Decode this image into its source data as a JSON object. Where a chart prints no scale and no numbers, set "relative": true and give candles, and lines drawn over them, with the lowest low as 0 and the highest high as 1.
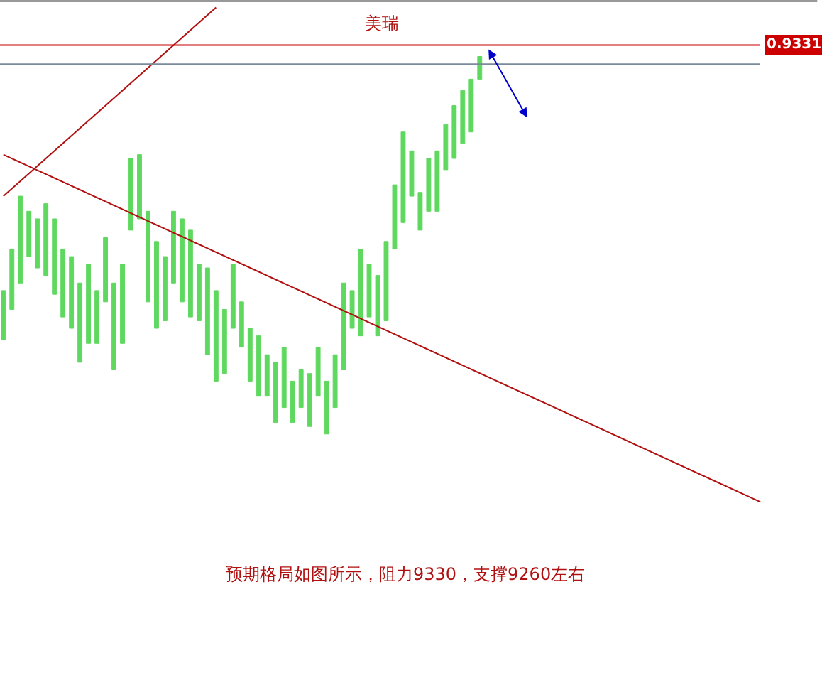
{
  "chart_data": {
    "type": "candlestick",
    "title": "美瑞",
    "relative": true,
    "tick_labels": false,
    "categories": [
      null,
      null,
      null,
      null,
      null,
      null,
      null,
      null,
      null,
      null,
      null,
      null,
      null,
      null,
      null,
      null,
      null,
      null,
      null,
      null,
      null,
      null,
      null,
      null,
      null,
      null,
      null,
      null,
      null,
      null,
      null,
      null,
      null,
      null,
      null,
      null,
      null,
      null,
      null,
      null,
      null,
      null,
      null,
      null,
      null,
      null,
      null,
      null,
      null,
      null,
      null,
      null,
      null,
      null,
      null,
      null,
      null,
      null,
      null,
      null,
      null,
      null,
      null,
      null,
      null,
      null,
      null,
      null,
      null,
      null,
      null,
      null,
      null,
      null,
      null,
      null,
      null,
      null,
      null,
      null,
      null,
      null,
      null,
      null,
      null,
      null,
      null,
      null,
      null,
      null
    ],
    "color": "#5fd85f",
    "ohlc": [
      [
        0.25,
        0.38,
        0.25,
        0.38
      ],
      [
        0.33,
        0.49,
        0.33,
        0.49
      ],
      [
        0.4,
        0.63,
        0.4,
        0.63
      ],
      [
        0.47,
        0.59,
        0.47,
        0.59
      ],
      [
        0.44,
        0.57,
        0.44,
        0.57
      ],
      [
        0.42,
        0.61,
        0.42,
        0.61
      ],
      [
        0.37,
        0.57,
        0.37,
        0.57
      ],
      [
        0.31,
        0.49,
        0.31,
        0.49
      ],
      [
        0.28,
        0.47,
        0.28,
        0.47
      ],
      [
        0.19,
        0.4,
        0.19,
        0.4
      ],
      [
        0.24,
        0.45,
        0.24,
        0.45
      ],
      [
        0.24,
        0.38,
        0.24,
        0.38
      ],
      [
        0.35,
        0.52,
        0.35,
        0.52
      ],
      [
        0.17,
        0.4,
        0.17,
        0.4
      ],
      [
        0.24,
        0.45,
        0.24,
        0.45
      ],
      [
        0.54,
        0.73,
        0.54,
        0.73
      ],
      [
        0.57,
        0.74,
        0.57,
        0.74
      ],
      [
        0.35,
        0.59,
        0.35,
        0.59
      ],
      [
        0.28,
        0.51,
        0.28,
        0.51
      ],
      [
        0.3,
        0.47,
        0.3,
        0.47
      ],
      [
        0.4,
        0.59,
        0.4,
        0.59
      ],
      [
        0.35,
        0.57,
        0.35,
        0.57
      ],
      [
        0.31,
        0.54,
        0.31,
        0.54
      ],
      [
        0.3,
        0.45,
        0.3,
        0.45
      ],
      [
        0.21,
        0.44,
        0.21,
        0.44
      ],
      [
        0.14,
        0.38,
        0.14,
        0.38
      ],
      [
        0.16,
        0.33,
        0.16,
        0.33
      ],
      [
        0.28,
        0.45,
        0.28,
        0.45
      ],
      [
        0.23,
        0.35,
        0.23,
        0.35
      ],
      [
        0.14,
        0.28,
        0.14,
        0.28
      ],
      [
        0.1,
        0.26,
        0.1,
        0.26
      ],
      [
        0.1,
        0.21,
        0.1,
        0.21
      ],
      [
        0.03,
        0.19,
        0.03,
        0.19
      ],
      [
        0.07,
        0.23,
        0.07,
        0.23
      ],
      [
        0.03,
        0.14,
        0.03,
        0.14
      ],
      [
        0.07,
        0.17,
        0.07,
        0.17
      ],
      [
        0.02,
        0.16,
        0.02,
        0.16
      ],
      [
        0.1,
        0.23,
        0.1,
        0.23
      ],
      [
        0,
        0.14,
        0,
        0.14
      ],
      [
        0.07,
        0.21,
        0.07,
        0.21
      ],
      [
        0.17,
        0.4,
        0.17,
        0.4
      ],
      [
        0.28,
        0.38,
        0.28,
        0.38
      ],
      [
        0.26,
        0.49,
        0.26,
        0.49
      ],
      [
        0.31,
        0.45,
        0.31,
        0.45
      ],
      [
        0.26,
        0.42,
        0.26,
        0.42
      ],
      [
        0.3,
        0.51,
        0.3,
        0.51
      ],
      [
        0.49,
        0.66,
        0.49,
        0.66
      ],
      [
        0.56,
        0.8,
        0.56,
        0.8
      ],
      [
        0.63,
        0.75,
        0.63,
        0.75
      ],
      [
        0.54,
        0.64,
        0.54,
        0.64
      ],
      [
        0.59,
        0.73,
        0.59,
        0.73
      ],
      [
        0.59,
        0.75,
        0.59,
        0.75
      ],
      [
        0.7,
        0.82,
        0.7,
        0.82
      ],
      [
        0.73,
        0.87,
        0.73,
        0.87
      ],
      [
        0.77,
        0.91,
        0.77,
        0.91
      ],
      [
        0.8,
        0.94,
        0.8,
        0.94
      ],
      [
        0.94,
        1.0,
        0.94,
        1.0
      ],
      null,
      null,
      null,
      null,
      null,
      null,
      null,
      null,
      null,
      null,
      null,
      null,
      null,
      null,
      null,
      null,
      null,
      null,
      null,
      null,
      null,
      null,
      null,
      null,
      null,
      null,
      null,
      null,
      null,
      null,
      null,
      null,
      null
    ],
    "series": [
      {
        "type": "line",
        "color": "#b01010",
        "values": [
          0.74,
          null,
          null,
          null,
          null,
          null,
          null,
          null,
          null,
          null,
          null,
          null,
          null,
          null,
          null,
          null,
          null,
          null,
          null,
          null,
          null,
          null,
          null,
          null,
          null,
          null,
          null,
          null,
          null,
          null,
          null,
          null,
          null,
          null,
          null,
          null,
          null,
          null,
          null,
          null,
          null,
          null,
          null,
          null,
          null,
          null,
          null,
          null,
          null,
          null,
          null,
          null,
          null,
          null,
          null,
          null,
          null,
          null,
          null,
          null,
          null,
          null,
          null,
          null,
          null,
          null,
          null,
          null,
          null,
          null,
          null,
          null,
          null,
          null,
          null,
          null,
          null,
          null,
          null,
          null,
          null,
          null,
          null,
          null,
          null,
          null,
          null,
          null,
          null,
          -0.18
        ]
      },
      {
        "type": "line",
        "color": "#b01010",
        "values": [
          0.63,
          null,
          null,
          null,
          null,
          null,
          null,
          null,
          null,
          null,
          null,
          null,
          null,
          null,
          null,
          null,
          null,
          null,
          null,
          null,
          null,
          null,
          null,
          null,
          null,
          1.13,
          null,
          null,
          null,
          null,
          null,
          null,
          null,
          null,
          null,
          null,
          null,
          null,
          null,
          null,
          null,
          null,
          null,
          null,
          null,
          null,
          null,
          null,
          null,
          null,
          null,
          null,
          null,
          null,
          null,
          null,
          null,
          null,
          null,
          null,
          null,
          null,
          null,
          null,
          null,
          null,
          null,
          null,
          null,
          null,
          null,
          null,
          null,
          null,
          null,
          null,
          null,
          null,
          null,
          null,
          null,
          null,
          null,
          null,
          null,
          null,
          null,
          null,
          null,
          null
        ]
      }
    ],
    "ref_lines": [
      {
        "axis": "y",
        "value": 1.03,
        "color": "#cc0000"
      },
      {
        "axis": "y",
        "value": 0.98,
        "color": "#7a8a9a"
      }
    ],
    "annotations": [
      "0.9331",
      "预期格局如图所示，阻力9330，支撑9260左右"
    ]
  }
}
